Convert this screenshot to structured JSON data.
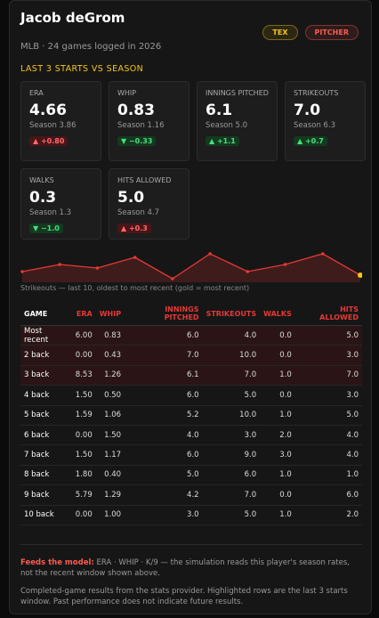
{
  "header": {
    "name": "Jacob deGrom",
    "subtitle": "MLB · 24 games logged in 2026",
    "badges": [
      "TEX",
      "PITCHER"
    ]
  },
  "section_title": "LAST 3 STARTS VS SEASON",
  "stats": [
    {
      "label": "ERA",
      "value": "4.66",
      "season": "Season 3.86",
      "delta": "▲ +0.80",
      "tone": "bad"
    },
    {
      "label": "WHIP",
      "value": "0.83",
      "season": "Season 1.16",
      "delta": "▼ −0.33",
      "tone": "good"
    },
    {
      "label": "INNINGS PITCHED",
      "value": "6.1",
      "season": "Season 5.0",
      "delta": "▲ +1.1",
      "tone": "good"
    },
    {
      "label": "STRIKEOUTS",
      "value": "7.0",
      "season": "Season 6.3",
      "delta": "▲ +0.7",
      "tone": "good"
    },
    {
      "label": "WALKS",
      "value": "0.3",
      "season": "Season 1.3",
      "delta": "▼ −1.0",
      "tone": "good"
    },
    {
      "label": "HITS ALLOWED",
      "value": "5.0",
      "season": "Season 4.7",
      "delta": "▲ +0.3",
      "tone": "bad"
    }
  ],
  "sparkline": {
    "values": [
      5,
      7,
      6,
      9,
      3,
      10,
      5,
      7,
      10,
      4
    ],
    "color": "#e53935",
    "highlight_color": "#f5c518",
    "caption": "Strikeouts — last 10, oldest to most recent (gold = most recent)"
  },
  "table": {
    "headers": [
      "GAME",
      "ERA",
      "WHIP",
      "INNINGS PITCHED",
      "STRIKEOUTS",
      "WALKS",
      "HITS ALLOWED"
    ],
    "highlighted_rows": 3,
    "rows": [
      [
        "Most recent",
        "6.00",
        "0.83",
        "6.0",
        "4.0",
        "0.0",
        "5.0"
      ],
      [
        "2 back",
        "0.00",
        "0.43",
        "7.0",
        "10.0",
        "0.0",
        "3.0"
      ],
      [
        "3 back",
        "8.53",
        "1.26",
        "6.1",
        "7.0",
        "1.0",
        "7.0"
      ],
      [
        "4 back",
        "1.50",
        "0.50",
        "6.0",
        "5.0",
        "0.0",
        "3.0"
      ],
      [
        "5 back",
        "1.59",
        "1.06",
        "5.2",
        "10.0",
        "1.0",
        "5.0"
      ],
      [
        "6 back",
        "0.00",
        "1.50",
        "4.0",
        "3.0",
        "2.0",
        "4.0"
      ],
      [
        "7 back",
        "1.50",
        "1.17",
        "6.0",
        "9.0",
        "3.0",
        "4.0"
      ],
      [
        "8 back",
        "1.80",
        "0.40",
        "5.0",
        "6.0",
        "1.0",
        "1.0"
      ],
      [
        "9 back",
        "5.79",
        "1.29",
        "4.2",
        "7.0",
        "0.0",
        "6.0"
      ],
      [
        "10 back",
        "0.00",
        "1.00",
        "3.0",
        "5.0",
        "1.0",
        "2.0"
      ]
    ]
  },
  "footer": {
    "lead": "Feeds the model:",
    "text": "ERA · WHIP · K/9 — the simulation reads this player's season rates, not the recent window shown above.",
    "note": "Completed-game results from the stats provider. Highlighted rows are the last 3 starts window. Past performance does not indicate future results."
  }
}
